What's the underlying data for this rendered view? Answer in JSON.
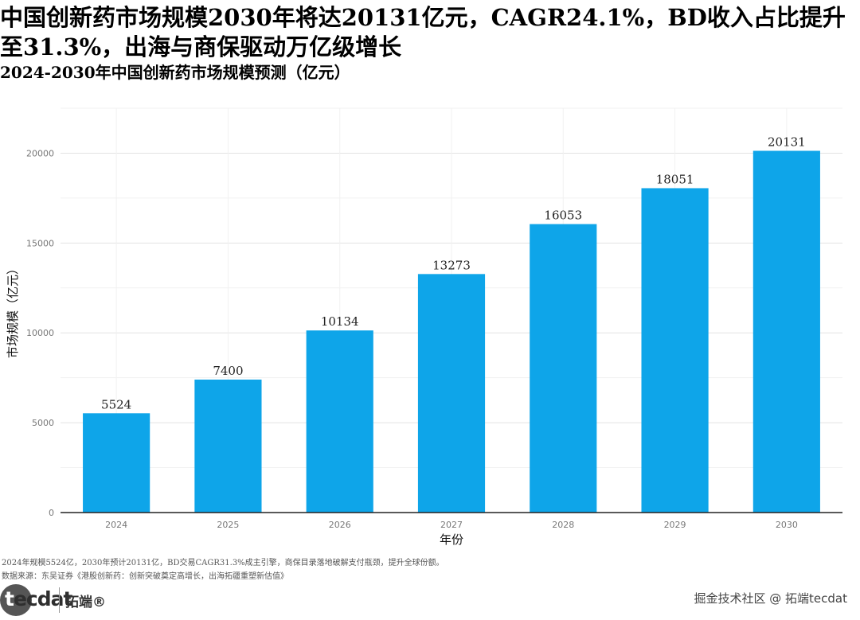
{
  "header": {
    "title": "中国创新药市场规模2030年将达20131亿元，CAGR24.1%，BD收入占比提升至31.3%，出海与商保驱动万亿级增长",
    "subtitle": "2024-2030年中国创新药市场规模预测（亿元）"
  },
  "chart_data": {
    "type": "bar",
    "categories": [
      "2024",
      "2025",
      "2026",
      "2027",
      "2028",
      "2029",
      "2030"
    ],
    "values": [
      5524,
      7400,
      10134,
      13273,
      16053,
      18051,
      20131
    ],
    "data_labels": [
      "5524",
      "7400",
      "10134",
      "13273",
      "16053",
      "18051",
      "20131"
    ],
    "xlabel": "年份",
    "ylabel": "市场规模（亿元）",
    "yticks": [
      0,
      5000,
      10000,
      15000,
      20000
    ],
    "ytick_labels": [
      "0",
      "5000",
      "10000",
      "15000",
      "20000"
    ],
    "ylim": [
      0,
      22500
    ],
    "grid": true,
    "legend": "none",
    "bar_color": "#0ea5e9"
  },
  "footer": {
    "note": "2024年规模5524亿，2030年预计20131亿，BD交易CAGR31.3%成主引擎，商保目录落地破解支付瓶颈，提升全球份额。",
    "source": "数据来源：东吴证券《港股创新药：创新突破奠定高增长，出海拓疆重塑新估值》",
    "brand_logo_first": "t",
    "brand_logo_rest": "ecdat",
    "brand_cn": "拓端®",
    "watermark": "掘金技术社区 @ 拓端tecdat"
  }
}
